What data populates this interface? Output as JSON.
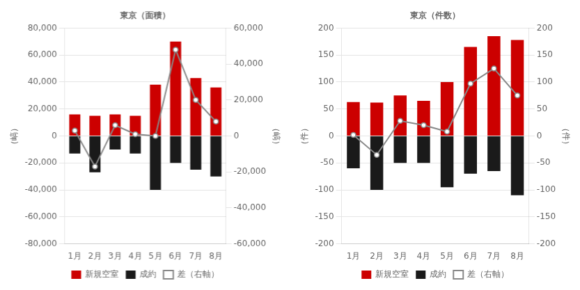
{
  "chart_data": [
    {
      "type": "bar",
      "title": "東京（面積）",
      "ylabel": "（嵪）",
      "y2label": "（嵪）",
      "categories": [
        "1月",
        "2月",
        "3月",
        "4月",
        "5月",
        "6月",
        "7月",
        "8月"
      ],
      "series": [
        {
          "name": "新規空室",
          "color": "#cc0000",
          "values": [
            16000,
            15000,
            16000,
            15000,
            38000,
            70000,
            43000,
            36000
          ]
        },
        {
          "name": "成約",
          "color": "#1a1a1a",
          "values": [
            -13000,
            -27000,
            -10000,
            -13000,
            -40000,
            -20000,
            -25000,
            -30000
          ]
        },
        {
          "name": "差（右軸）",
          "color": "#888888",
          "type": "line",
          "marker": "circle",
          "axis": "y2",
          "values": [
            3000,
            -17000,
            6000,
            1000,
            0,
            48000,
            20000,
            8000
          ]
        }
      ],
      "ylim": [
        -80000,
        80000
      ],
      "yticks": [
        {
          "value": -80000,
          "label": "-80,000"
        },
        {
          "value": -60000,
          "label": "-60,000"
        },
        {
          "value": -40000,
          "label": "-40,000"
        },
        {
          "value": -20000,
          "label": "-20,000"
        },
        0,
        {
          "value": 20000,
          "label": "20,000"
        },
        {
          "value": 40000,
          "label": "40,000"
        },
        {
          "value": 60000,
          "label": "60,000"
        },
        {
          "value": 80000,
          "label": "80,000"
        }
      ],
      "y2lim": [
        -60000,
        60000
      ],
      "y2ticks": [
        {
          "value": -60000,
          "label": "-60,000"
        },
        {
          "value": -40000,
          "label": "-40,000"
        },
        {
          "value": -20000,
          "label": "-20,000"
        },
        0,
        {
          "value": 20000,
          "label": "20,000"
        },
        {
          "value": 40000,
          "label": "40,000"
        },
        {
          "value": 60000,
          "label": "60,000"
        }
      ],
      "grid": true,
      "legend": "bottom"
    },
    {
      "type": "bar",
      "title": "東京（件数）",
      "ylabel": "（件）",
      "y2label": "（件）",
      "categories": [
        "1月",
        "2月",
        "3月",
        "4月",
        "5月",
        "6月",
        "7月",
        "8月"
      ],
      "series": [
        {
          "name": "新規空室",
          "color": "#cc0000",
          "values": [
            63,
            62,
            75,
            65,
            100,
            165,
            185,
            178
          ]
        },
        {
          "name": "成約",
          "color": "#1a1a1a",
          "values": [
            -60,
            -100,
            -50,
            -50,
            -95,
            -70,
            -65,
            -110
          ]
        },
        {
          "name": "差（右軸）",
          "color": "#888888",
          "type": "line",
          "marker": "circle",
          "axis": "y2",
          "values": [
            2,
            -35,
            28,
            20,
            8,
            97,
            125,
            75
          ]
        }
      ],
      "ylim": [
        -200,
        200
      ],
      "yticks": [
        -200,
        -150,
        -100,
        -50,
        0,
        50,
        100,
        150,
        200
      ],
      "y2lim": [
        -200,
        200
      ],
      "y2ticks": [
        -200,
        -150,
        -100,
        -50,
        0,
        50,
        100,
        150,
        200
      ],
      "grid": true,
      "legend": "bottom"
    }
  ]
}
